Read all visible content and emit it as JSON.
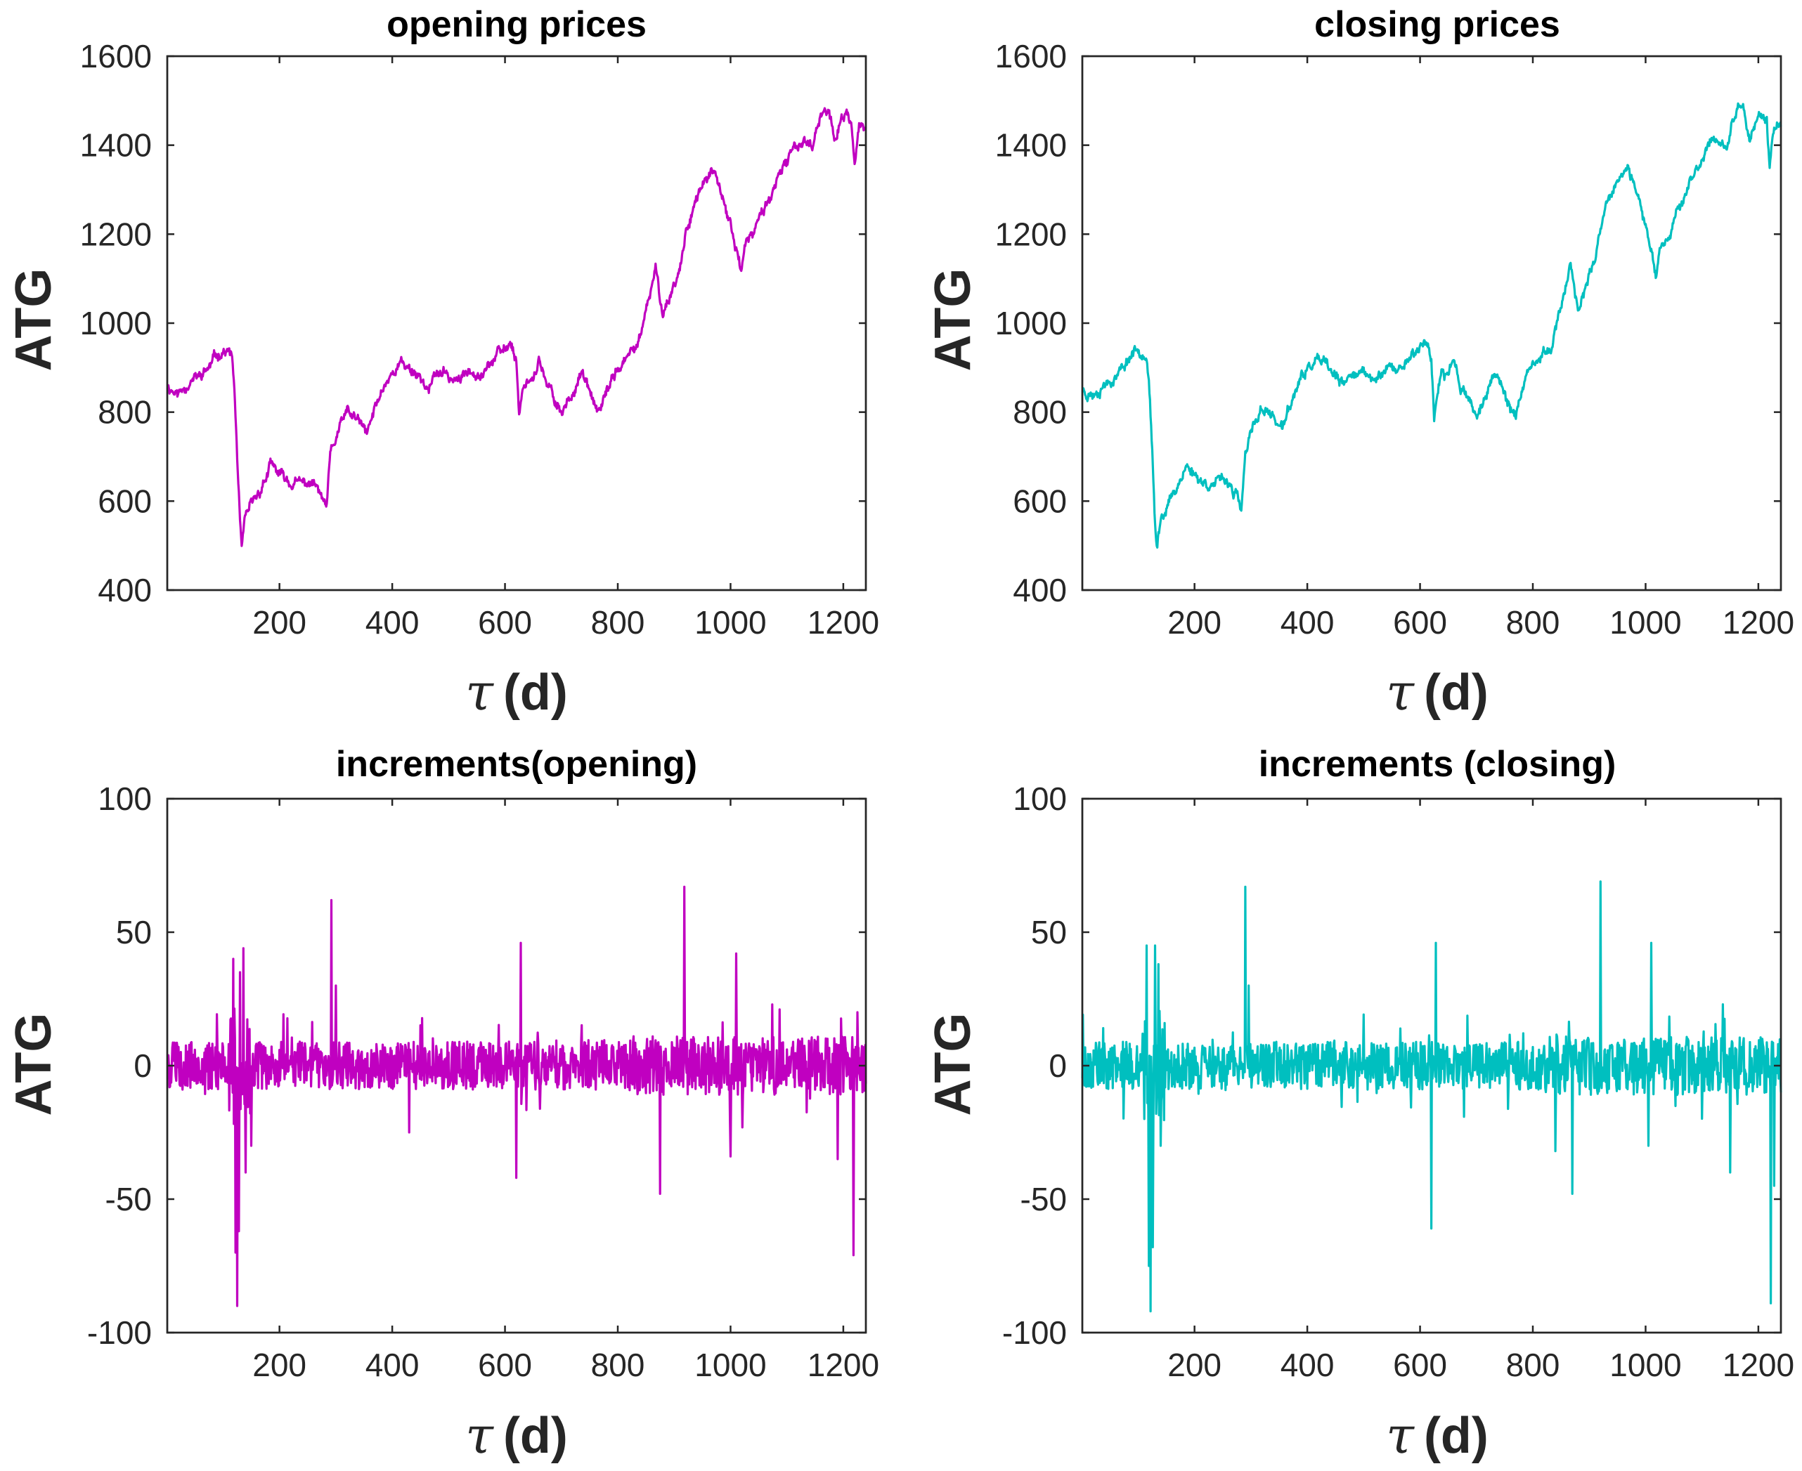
{
  "chart_data": [
    {
      "type": "line",
      "title": "opening prices",
      "xlabel": "τ (d)",
      "xlabel_symbol": "τ",
      "xlabel_unit": "(d)",
      "ylabel": "ATG",
      "color": "#c000c0",
      "xlim": [
        1,
        1240
      ],
      "ylim": [
        400,
        1600
      ],
      "xticks": [
        200,
        400,
        600,
        800,
        1000,
        1200
      ],
      "yticks": [
        400,
        600,
        800,
        1000,
        1200,
        1400,
        1600
      ],
      "xtick_labels": [
        "200",
        "400",
        "600",
        "800",
        "1000",
        "1200"
      ],
      "ytick_labels": [
        "400",
        "600",
        "800",
        "1000",
        "1200",
        "1400",
        "1600"
      ],
      "anchors": [
        [
          1,
          860
        ],
        [
          20,
          840
        ],
        [
          40,
          870
        ],
        [
          60,
          880
        ],
        [
          75,
          900
        ],
        [
          90,
          930
        ],
        [
          100,
          940
        ],
        [
          115,
          930
        ],
        [
          120,
          850
        ],
        [
          125,
          700
        ],
        [
          130,
          550
        ],
        [
          133,
          490
        ],
        [
          140,
          560
        ],
        [
          150,
          590
        ],
        [
          160,
          610
        ],
        [
          175,
          650
        ],
        [
          185,
          680
        ],
        [
          200,
          660
        ],
        [
          220,
          640
        ],
        [
          240,
          640
        ],
        [
          260,
          640
        ],
        [
          275,
          610
        ],
        [
          283,
          575
        ],
        [
          290,
          700
        ],
        [
          305,
          760
        ],
        [
          320,
          800
        ],
        [
          340,
          780
        ],
        [
          355,
          750
        ],
        [
          370,
          810
        ],
        [
          385,
          860
        ],
        [
          400,
          890
        ],
        [
          415,
          910
        ],
        [
          430,
          900
        ],
        [
          450,
          880
        ],
        [
          465,
          850
        ],
        [
          480,
          890
        ],
        [
          500,
          880
        ],
        [
          520,
          870
        ],
        [
          540,
          900
        ],
        [
          560,
          890
        ],
        [
          580,
          920
        ],
        [
          600,
          940
        ],
        [
          610,
          960
        ],
        [
          620,
          920
        ],
        [
          625,
          800
        ],
        [
          635,
          870
        ],
        [
          650,
          880
        ],
        [
          660,
          920
        ],
        [
          672,
          860
        ],
        [
          685,
          840
        ],
        [
          700,
          800
        ],
        [
          715,
          830
        ],
        [
          725,
          860
        ],
        [
          735,
          890
        ],
        [
          748,
          850
        ],
        [
          760,
          810
        ],
        [
          770,
          800
        ],
        [
          780,
          840
        ],
        [
          795,
          890
        ],
        [
          810,
          910
        ],
        [
          830,
          940
        ],
        [
          845,
          990
        ],
        [
          860,
          1080
        ],
        [
          867,
          1120
        ],
        [
          875,
          1060
        ],
        [
          880,
          1030
        ],
        [
          890,
          1050
        ],
        [
          900,
          1090
        ],
        [
          910,
          1120
        ],
        [
          920,
          1200
        ],
        [
          930,
          1250
        ],
        [
          940,
          1280
        ],
        [
          955,
          1320
        ],
        [
          965,
          1340
        ],
        [
          975,
          1320
        ],
        [
          990,
          1260
        ],
        [
          1000,
          1220
        ],
        [
          1012,
          1160
        ],
        [
          1018,
          1120
        ],
        [
          1025,
          1170
        ],
        [
          1040,
          1200
        ],
        [
          1060,
          1260
        ],
        [
          1080,
          1310
        ],
        [
          1100,
          1360
        ],
        [
          1115,
          1400
        ],
        [
          1130,
          1410
        ],
        [
          1145,
          1400
        ],
        [
          1150,
          1430
        ],
        [
          1165,
          1490
        ],
        [
          1175,
          1470
        ],
        [
          1185,
          1410
        ],
        [
          1195,
          1450
        ],
        [
          1205,
          1470
        ],
        [
          1215,
          1450
        ],
        [
          1220,
          1360
        ],
        [
          1228,
          1440
        ],
        [
          1240,
          1440
        ]
      ],
      "increments_seed": 11
    },
    {
      "type": "line",
      "title": "closing prices",
      "xlabel": "τ (d)",
      "xlabel_symbol": "τ",
      "xlabel_unit": "(d)",
      "ylabel": "ATG",
      "color": "#00bfbf",
      "xlim": [
        1,
        1240
      ],
      "ylim": [
        400,
        1600
      ],
      "xticks": [
        200,
        400,
        600,
        800,
        1000,
        1200
      ],
      "yticks": [
        400,
        600,
        800,
        1000,
        1200,
        1400,
        1600
      ],
      "xtick_labels": [
        "200",
        "400",
        "600",
        "800",
        "1000",
        "1200"
      ],
      "ytick_labels": [
        "400",
        "600",
        "800",
        "1000",
        "1200",
        "1400",
        "1600"
      ],
      "anchors": [
        [
          1,
          850
        ],
        [
          20,
          840
        ],
        [
          40,
          865
        ],
        [
          60,
          880
        ],
        [
          75,
          905
        ],
        [
          90,
          935
        ],
        [
          100,
          945
        ],
        [
          115,
          930
        ],
        [
          120,
          850
        ],
        [
          125,
          700
        ],
        [
          130,
          540
        ],
        [
          133,
          490
        ],
        [
          140,
          560
        ],
        [
          150,
          590
        ],
        [
          160,
          610
        ],
        [
          175,
          650
        ],
        [
          185,
          680
        ],
        [
          200,
          660
        ],
        [
          220,
          640
        ],
        [
          240,
          640
        ],
        [
          260,
          645
        ],
        [
          275,
          610
        ],
        [
          283,
          575
        ],
        [
          290,
          700
        ],
        [
          305,
          770
        ],
        [
          320,
          810
        ],
        [
          340,
          790
        ],
        [
          355,
          760
        ],
        [
          370,
          815
        ],
        [
          385,
          865
        ],
        [
          400,
          895
        ],
        [
          415,
          915
        ],
        [
          430,
          905
        ],
        [
          450,
          880
        ],
        [
          465,
          855
        ],
        [
          480,
          895
        ],
        [
          500,
          885
        ],
        [
          520,
          870
        ],
        [
          540,
          905
        ],
        [
          560,
          890
        ],
        [
          580,
          925
        ],
        [
          600,
          945
        ],
        [
          610,
          965
        ],
        [
          620,
          920
        ],
        [
          625,
          790
        ],
        [
          635,
          870
        ],
        [
          650,
          885
        ],
        [
          660,
          925
        ],
        [
          672,
          860
        ],
        [
          685,
          840
        ],
        [
          700,
          790
        ],
        [
          715,
          830
        ],
        [
          725,
          860
        ],
        [
          735,
          895
        ],
        [
          748,
          850
        ],
        [
          760,
          810
        ],
        [
          770,
          800
        ],
        [
          780,
          840
        ],
        [
          795,
          890
        ],
        [
          810,
          915
        ],
        [
          830,
          945
        ],
        [
          845,
          1000
        ],
        [
          860,
          1100
        ],
        [
          867,
          1130
        ],
        [
          875,
          1070
        ],
        [
          880,
          1040
        ],
        [
          890,
          1060
        ],
        [
          900,
          1100
        ],
        [
          910,
          1130
        ],
        [
          920,
          1210
        ],
        [
          930,
          1260
        ],
        [
          940,
          1290
        ],
        [
          955,
          1330
        ],
        [
          965,
          1345
        ],
        [
          975,
          1320
        ],
        [
          990,
          1260
        ],
        [
          1000,
          1220
        ],
        [
          1012,
          1160
        ],
        [
          1018,
          1110
        ],
        [
          1025,
          1170
        ],
        [
          1040,
          1200
        ],
        [
          1060,
          1265
        ],
        [
          1080,
          1315
        ],
        [
          1100,
          1365
        ],
        [
          1115,
          1405
        ],
        [
          1130,
          1415
        ],
        [
          1145,
          1400
        ],
        [
          1150,
          1430
        ],
        [
          1165,
          1495
        ],
        [
          1175,
          1470
        ],
        [
          1185,
          1410
        ],
        [
          1195,
          1455
        ],
        [
          1205,
          1475
        ],
        [
          1215,
          1450
        ],
        [
          1220,
          1340
        ],
        [
          1228,
          1440
        ],
        [
          1240,
          1445
        ]
      ],
      "increments_seed": 23
    },
    {
      "type": "line",
      "title": "increments(opening)",
      "xlabel": "τ (d)",
      "xlabel_symbol": "τ",
      "xlabel_unit": "(d)",
      "ylabel": "ATG",
      "color": "#c000c0",
      "xlim": [
        1,
        1240
      ],
      "ylim": [
        -100,
        100
      ],
      "xticks": [
        200,
        400,
        600,
        800,
        1000,
        1200
      ],
      "yticks": [
        -100,
        -50,
        0,
        50,
        100
      ],
      "xtick_labels": [
        "200",
        "400",
        "600",
        "800",
        "1000",
        "1200"
      ],
      "ytick_labels": [
        "-100",
        "-50",
        "0",
        "50",
        "100"
      ],
      "spikes": [
        [
          118,
          40
        ],
        [
          122,
          -70
        ],
        [
          125,
          -90
        ],
        [
          128,
          -62
        ],
        [
          130,
          35
        ],
        [
          136,
          44
        ],
        [
          140,
          -40
        ],
        [
          292,
          62
        ],
        [
          300,
          30
        ],
        [
          620,
          -42
        ],
        [
          628,
          46
        ],
        [
          875,
          -48
        ],
        [
          918,
          67
        ],
        [
          1000,
          -34
        ],
        [
          1010,
          42
        ],
        [
          1218,
          -71
        ],
        [
          1225,
          20
        ],
        [
          430,
          -25
        ],
        [
          150,
          -30
        ],
        [
          1190,
          -35
        ]
      ],
      "noise_seed": 5,
      "noise_amp": 9
    },
    {
      "type": "line",
      "title": "increments (closing)",
      "xlabel": "τ (d)",
      "xlabel_symbol": "τ",
      "xlabel_unit": "(d)",
      "ylabel": "ATG",
      "color": "#00bfbf",
      "xlim": [
        1,
        1240
      ],
      "ylim": [
        -100,
        100
      ],
      "xticks": [
        200,
        400,
        600,
        800,
        1000,
        1200
      ],
      "yticks": [
        -100,
        -50,
        0,
        50,
        100
      ],
      "xtick_labels": [
        "200",
        "400",
        "600",
        "800",
        "1000",
        "1200"
      ],
      "ytick_labels": [
        "-100",
        "-50",
        "0",
        "50",
        "100"
      ],
      "spikes": [
        [
          115,
          45
        ],
        [
          119,
          -75
        ],
        [
          122,
          -92
        ],
        [
          126,
          -68
        ],
        [
          130,
          45
        ],
        [
          136,
          38
        ],
        [
          140,
          -30
        ],
        [
          290,
          67
        ],
        [
          296,
          30
        ],
        [
          620,
          -61
        ],
        [
          628,
          46
        ],
        [
          870,
          -48
        ],
        [
          920,
          69
        ],
        [
          1010,
          46
        ],
        [
          1005,
          -30
        ],
        [
          1222,
          -89
        ],
        [
          1228,
          -45
        ],
        [
          1240,
          -10
        ],
        [
          840,
          -32
        ],
        [
          1150,
          -40
        ]
      ],
      "noise_seed": 9,
      "noise_amp": 9
    }
  ]
}
